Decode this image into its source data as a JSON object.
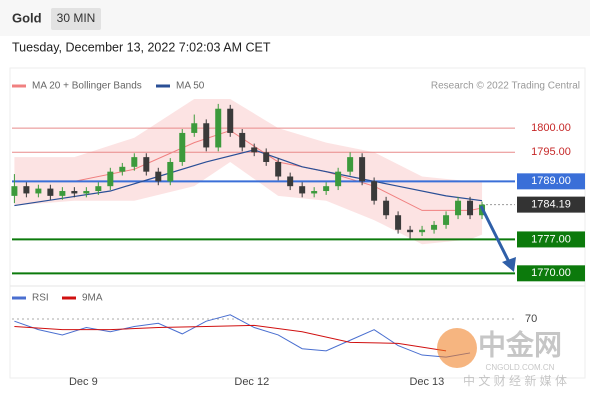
{
  "header": {
    "symbol": "Gold",
    "interval": "30 MIN",
    "timestamp": "Tuesday, December 13, 2022 7:02:03 AM CET",
    "source": "Research © 2022 Trading Central"
  },
  "watermark": {
    "name": "中金网",
    "site": "CNGOLD.COM.CN",
    "tagline": "中 文 财 经 新 媒 体"
  },
  "chart_data": [
    {
      "type": "candlestick",
      "x": [
        0,
        1,
        2,
        3,
        4,
        5,
        6,
        7,
        8,
        9,
        10,
        11,
        12,
        13,
        14,
        15,
        16,
        17,
        18,
        19,
        20,
        21,
        22,
        23,
        24,
        25,
        26,
        27,
        28,
        29,
        30,
        31,
        32,
        33,
        34,
        35,
        36,
        37,
        38,
        39
      ],
      "open": [
        1786,
        1788,
        1786.5,
        1787.5,
        1786,
        1787,
        1786.5,
        1787,
        1788,
        1791,
        1792,
        1794,
        1791,
        1789,
        1793,
        1799,
        1801,
        1796,
        1804,
        1799,
        1796,
        1795,
        1793,
        1790,
        1788,
        1786.5,
        1787,
        1788,
        1791,
        1794,
        1789,
        1785,
        1782,
        1779,
        1778.5,
        1779,
        1780,
        1782,
        1785,
        1782
      ],
      "high": [
        1790.5,
        1788.8,
        1788.3,
        1788.3,
        1787.8,
        1787.8,
        1787.8,
        1788.8,
        1791.8,
        1792.8,
        1794.8,
        1794.8,
        1791.8,
        1793.8,
        1799.8,
        1802.8,
        1801.8,
        1805,
        1804.8,
        1799.8,
        1796.8,
        1795.8,
        1793.8,
        1790.8,
        1788.8,
        1787.8,
        1788.8,
        1791.8,
        1795,
        1794.8,
        1789.8,
        1785.8,
        1782.8,
        1779.8,
        1779.8,
        1780.8,
        1782.8,
        1785.8,
        1785.8,
        1784.8
      ],
      "low": [
        1784.5,
        1785.7,
        1785.7,
        1785.2,
        1785.2,
        1785.7,
        1785.7,
        1786.2,
        1787.2,
        1790.2,
        1791.2,
        1790.2,
        1788.2,
        1788.2,
        1792.2,
        1798.2,
        1795.2,
        1795.2,
        1798.2,
        1795.2,
        1794.2,
        1792.2,
        1789.2,
        1787.2,
        1785.7,
        1785.7,
        1786.2,
        1787.2,
        1790.2,
        1788.2,
        1784.2,
        1781.2,
        1778.2,
        1777.2,
        1777.7,
        1778.2,
        1779.2,
        1781.2,
        1781.2,
        1781.2
      ],
      "close": [
        1788,
        1786.5,
        1787.5,
        1786,
        1787,
        1786.5,
        1787,
        1788,
        1791,
        1792,
        1794,
        1791,
        1789,
        1793,
        1799,
        1801,
        1796,
        1804,
        1799,
        1796,
        1795,
        1793,
        1790,
        1788,
        1786.5,
        1787,
        1788,
        1791,
        1794,
        1789,
        1785,
        1782,
        1779,
        1778.5,
        1779,
        1780,
        1782,
        1785,
        1782,
        1784.19
      ],
      "up_color": "#3c9a3c",
      "down_color": "#3a3a3a",
      "xlim": [
        -0.2,
        41.75
      ],
      "xticks": [
        {
          "value": 5.75,
          "label": "Dec 9"
        },
        {
          "value": 19.8,
          "label": "Dec 12"
        },
        {
          "value": 34.4,
          "label": "Dec 13"
        }
      ],
      "ylim": [
        1768,
        1812
      ],
      "levels": [
        {
          "value": 1800,
          "label": "1800.00",
          "color": "#e88a8a",
          "text_color": "#c62828",
          "style": "plain"
        },
        {
          "value": 1795,
          "label": "1795.00",
          "color": "#e88a8a",
          "text_color": "#c62828",
          "style": "plain"
        },
        {
          "value": 1789,
          "label": "1789.00",
          "color": "#3a6fd8",
          "text_color": "#ffffff",
          "style": "box"
        },
        {
          "value": 1784.19,
          "label": "1784.19",
          "color": "#333333",
          "text_color": "#ffffff",
          "style": "box"
        },
        {
          "value": 1777,
          "label": "1777.00",
          "color": "#0c7a0c",
          "text_color": "#ffffff",
          "style": "box"
        },
        {
          "value": 1770,
          "label": "1770.00",
          "color": "#0c7a0c",
          "text_color": "#ffffff",
          "style": "box"
        }
      ],
      "band": {
        "name": "MA 20 + Bollinger Bands",
        "color": "#f08080",
        "x": [
          0,
          5,
          10,
          15,
          18,
          22,
          26,
          30,
          34,
          38,
          39
        ],
        "upper": [
          1794,
          1794,
          1798,
          1806,
          1806,
          1800,
          1797,
          1795,
          1790,
          1789,
          1789
        ],
        "lower": [
          1784,
          1785,
          1785,
          1788,
          1793,
          1786,
          1785,
          1781,
          1776,
          1777,
          1778
        ],
        "mid": [
          1789,
          1789,
          1791.5,
          1797,
          1799.5,
          1793,
          1791,
          1788,
          1783,
          1783,
          1783.5
        ]
      },
      "series": [
        {
          "name": "MA 50",
          "color": "#2a4f96",
          "x": [
            0,
            4,
            8,
            12,
            16,
            20,
            24,
            28,
            32,
            36,
            39
          ],
          "values": [
            1784,
            1785.5,
            1787,
            1790,
            1793,
            1795.5,
            1792,
            1790,
            1788,
            1786,
            1785
          ]
        }
      ]
    },
    {
      "type": "line",
      "ylim": [
        20,
        88
      ],
      "yticks": [
        70
      ],
      "xlim": [
        -0.2,
        41.75
      ],
      "series": [
        {
          "name": "RSI",
          "color": "#4a6fd0",
          "x": [
            0,
            2,
            4,
            6,
            8,
            10,
            12,
            14,
            16,
            18,
            20,
            22,
            24,
            26,
            28,
            30,
            32,
            34,
            36,
            38
          ],
          "values": [
            68,
            60,
            55,
            62,
            58,
            63,
            66,
            56,
            68,
            74,
            62,
            55,
            42,
            40,
            50,
            60,
            45,
            36,
            34,
            38
          ]
        },
        {
          "name": "9MA",
          "color": "#d01010",
          "x": [
            0,
            4,
            8,
            12,
            16,
            20,
            24,
            28,
            32,
            36
          ],
          "values": [
            63,
            60,
            60,
            62,
            63,
            64,
            58,
            48,
            47,
            40
          ]
        }
      ]
    }
  ]
}
